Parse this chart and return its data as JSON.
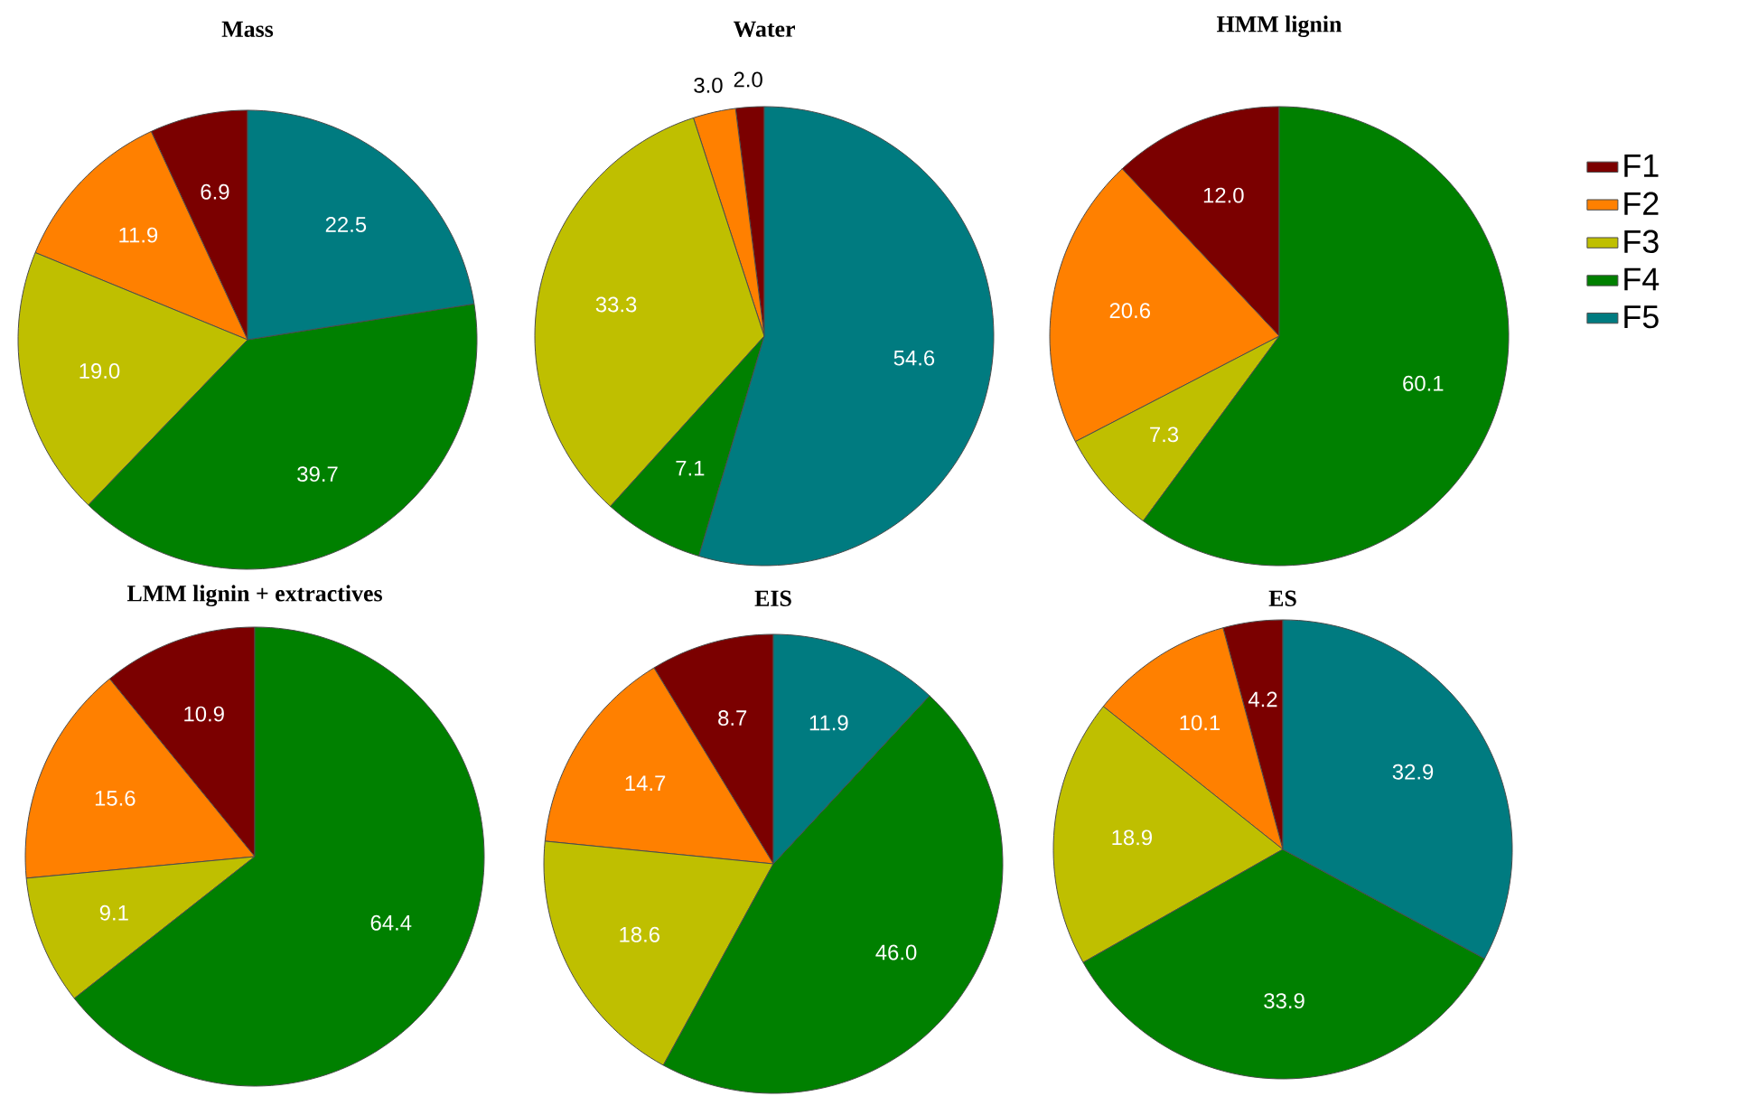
{
  "chart_data": [
    {
      "type": "pie",
      "title": "Mass",
      "categories": [
        "F1",
        "F2",
        "F3",
        "F4",
        "F5"
      ],
      "values": [
        6.9,
        11.9,
        19.0,
        39.7,
        22.5
      ],
      "value_labels": [
        "6.9",
        "11.9",
        "19.0",
        "39.7",
        "22.5"
      ],
      "colors": [
        "#7b0000",
        "#ff8000",
        "#bfbf00",
        "#008000",
        "#007b80"
      ],
      "legend": "right"
    },
    {
      "type": "pie",
      "title": "Water",
      "categories": [
        null,
        null,
        null,
        null,
        null
      ],
      "values": [
        2.0,
        3.0,
        33.3,
        7.1,
        54.6
      ],
      "value_labels": [
        "2.0",
        "3.0",
        "33.3",
        "7.1",
        "54.6"
      ],
      "colors": [
        "#7b0000",
        "#ff8000",
        "#bfbf00",
        "#008000",
        "#007b80"
      ]
    },
    {
      "type": "pie",
      "title": "HMM lignin",
      "categories": [
        null,
        null,
        null,
        null
      ],
      "values": [
        12.0,
        20.6,
        7.3,
        60.1
      ],
      "value_labels": [
        "12.0",
        "20.6",
        "7.3",
        "60.1"
      ],
      "colors": [
        "#7b0000",
        "#ff8000",
        "#bfbf00",
        "#008000"
      ]
    },
    {
      "type": "pie",
      "title": "LMM lignin + extractives",
      "categories": [
        null,
        null,
        null,
        null
      ],
      "values": [
        10.9,
        15.6,
        9.1,
        64.4
      ],
      "value_labels": [
        "10.9",
        "15.6",
        "9.1",
        "64.4"
      ],
      "colors": [
        "#7b0000",
        "#ff8000",
        "#bfbf00",
        "#008000"
      ]
    },
    {
      "type": "pie",
      "title": "EIS",
      "categories": [
        null,
        null,
        null,
        null,
        null
      ],
      "values": [
        8.7,
        14.7,
        18.6,
        46.0,
        11.9
      ],
      "value_labels": [
        "8.7",
        "14.7",
        "18.6",
        "46.0",
        "11.9"
      ],
      "colors": [
        "#7b0000",
        "#ff8000",
        "#bfbf00",
        "#008000",
        "#007b80"
      ]
    },
    {
      "type": "pie",
      "title": "ES",
      "categories": [
        null,
        null,
        null,
        null,
        null
      ],
      "values": [
        4.2,
        10.1,
        18.9,
        33.9,
        32.9
      ],
      "value_labels": [
        "4.2",
        "10.1",
        "18.9",
        "33.9",
        "32.9"
      ],
      "colors": [
        "#7b0000",
        "#ff8000",
        "#bfbf00",
        "#008000",
        "#007b80"
      ]
    }
  ]
}
